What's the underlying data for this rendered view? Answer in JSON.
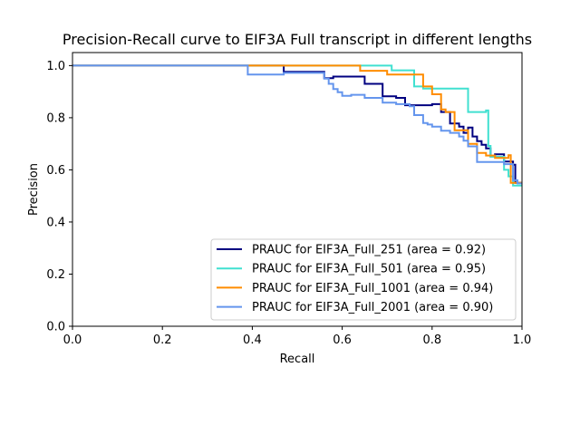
{
  "chart_data": {
    "type": "line",
    "title": "Precision-Recall curve to EIF3A Full transcript in different lengths",
    "xlabel": "Recall",
    "ylabel": "Precision",
    "xlim": [
      0.0,
      1.0
    ],
    "ylim": [
      0.0,
      1.05
    ],
    "xticks": [
      "0.0",
      "0.2",
      "0.4",
      "0.6",
      "0.8",
      "1.0"
    ],
    "yticks": [
      "0.0",
      "0.2",
      "0.4",
      "0.6",
      "0.8",
      "1.0"
    ],
    "grid": false,
    "legend_position": "lower-right",
    "series": [
      {
        "name": "PRAUC for EIF3A_Full_251 (area = 0.92)",
        "color": "#000080",
        "points": [
          [
            0.0,
            1.0
          ],
          [
            0.47,
            1.0
          ],
          [
            0.47,
            0.976
          ],
          [
            0.56,
            0.976
          ],
          [
            0.56,
            0.952
          ],
          [
            0.58,
            0.952
          ],
          [
            0.58,
            0.958
          ],
          [
            0.65,
            0.958
          ],
          [
            0.65,
            0.93
          ],
          [
            0.69,
            0.93
          ],
          [
            0.69,
            0.882
          ],
          [
            0.72,
            0.882
          ],
          [
            0.72,
            0.876
          ],
          [
            0.74,
            0.876
          ],
          [
            0.74,
            0.848
          ],
          [
            0.8,
            0.848
          ],
          [
            0.8,
            0.852
          ],
          [
            0.82,
            0.852
          ],
          [
            0.82,
            0.822
          ],
          [
            0.84,
            0.822
          ],
          [
            0.84,
            0.778
          ],
          [
            0.86,
            0.778
          ],
          [
            0.86,
            0.766
          ],
          [
            0.87,
            0.766
          ],
          [
            0.87,
            0.742
          ],
          [
            0.88,
            0.742
          ],
          [
            0.88,
            0.762
          ],
          [
            0.89,
            0.762
          ],
          [
            0.89,
            0.728
          ],
          [
            0.9,
            0.728
          ],
          [
            0.9,
            0.71
          ],
          [
            0.91,
            0.71
          ],
          [
            0.91,
            0.696
          ],
          [
            0.92,
            0.696
          ],
          [
            0.92,
            0.682
          ],
          [
            0.93,
            0.682
          ],
          [
            0.93,
            0.652
          ],
          [
            0.94,
            0.652
          ],
          [
            0.94,
            0.66
          ],
          [
            0.96,
            0.66
          ],
          [
            0.96,
            0.632
          ],
          [
            0.98,
            0.632
          ],
          [
            0.98,
            0.62
          ],
          [
            0.985,
            0.62
          ],
          [
            0.985,
            0.55
          ],
          [
            1.0,
            0.55
          ]
        ]
      },
      {
        "name": "PRAUC for EIF3A_Full_501 (area = 0.95)",
        "color": "#40e0d0",
        "points": [
          [
            0.0,
            1.0
          ],
          [
            0.71,
            1.0
          ],
          [
            0.71,
            0.982
          ],
          [
            0.76,
            0.982
          ],
          [
            0.76,
            0.92
          ],
          [
            0.78,
            0.92
          ],
          [
            0.78,
            0.912
          ],
          [
            0.88,
            0.912
          ],
          [
            0.88,
            0.822
          ],
          [
            0.92,
            0.822
          ],
          [
            0.92,
            0.828
          ],
          [
            0.925,
            0.828
          ],
          [
            0.925,
            0.692
          ],
          [
            0.93,
            0.692
          ],
          [
            0.93,
            0.65
          ],
          [
            0.96,
            0.65
          ],
          [
            0.96,
            0.6
          ],
          [
            0.97,
            0.6
          ],
          [
            0.97,
            0.575
          ],
          [
            0.98,
            0.575
          ],
          [
            0.98,
            0.54
          ],
          [
            1.0,
            0.54
          ]
        ]
      },
      {
        "name": "PRAUC for EIF3A_Full_1001 (area = 0.94)",
        "color": "#ff8c00",
        "points": [
          [
            0.0,
            1.0
          ],
          [
            0.64,
            1.0
          ],
          [
            0.64,
            0.98
          ],
          [
            0.7,
            0.98
          ],
          [
            0.7,
            0.966
          ],
          [
            0.78,
            0.966
          ],
          [
            0.78,
            0.92
          ],
          [
            0.8,
            0.92
          ],
          [
            0.8,
            0.89
          ],
          [
            0.82,
            0.89
          ],
          [
            0.82,
            0.832
          ],
          [
            0.83,
            0.832
          ],
          [
            0.83,
            0.822
          ],
          [
            0.85,
            0.822
          ],
          [
            0.85,
            0.752
          ],
          [
            0.88,
            0.752
          ],
          [
            0.88,
            0.7
          ],
          [
            0.9,
            0.7
          ],
          [
            0.9,
            0.665
          ],
          [
            0.92,
            0.665
          ],
          [
            0.92,
            0.655
          ],
          [
            0.94,
            0.655
          ],
          [
            0.94,
            0.646
          ],
          [
            0.97,
            0.646
          ],
          [
            0.97,
            0.656
          ],
          [
            0.975,
            0.656
          ],
          [
            0.975,
            0.55
          ],
          [
            1.0,
            0.55
          ]
        ]
      },
      {
        "name": "PRAUC for EIF3A_Full_2001 (area = 0.90)",
        "color": "#6495ed",
        "points": [
          [
            0.0,
            1.0
          ],
          [
            0.39,
            1.0
          ],
          [
            0.39,
            0.966
          ],
          [
            0.47,
            0.966
          ],
          [
            0.47,
            0.972
          ],
          [
            0.56,
            0.972
          ],
          [
            0.56,
            0.95
          ],
          [
            0.57,
            0.95
          ],
          [
            0.57,
            0.93
          ],
          [
            0.58,
            0.93
          ],
          [
            0.58,
            0.91
          ],
          [
            0.59,
            0.91
          ],
          [
            0.59,
            0.898
          ],
          [
            0.6,
            0.898
          ],
          [
            0.6,
            0.884
          ],
          [
            0.62,
            0.884
          ],
          [
            0.62,
            0.888
          ],
          [
            0.65,
            0.888
          ],
          [
            0.65,
            0.876
          ],
          [
            0.69,
            0.876
          ],
          [
            0.69,
            0.858
          ],
          [
            0.72,
            0.858
          ],
          [
            0.72,
            0.852
          ],
          [
            0.75,
            0.852
          ],
          [
            0.75,
            0.844
          ],
          [
            0.76,
            0.844
          ],
          [
            0.76,
            0.81
          ],
          [
            0.78,
            0.81
          ],
          [
            0.78,
            0.78
          ],
          [
            0.79,
            0.78
          ],
          [
            0.79,
            0.774
          ],
          [
            0.8,
            0.774
          ],
          [
            0.8,
            0.766
          ],
          [
            0.82,
            0.766
          ],
          [
            0.82,
            0.75
          ],
          [
            0.84,
            0.75
          ],
          [
            0.84,
            0.742
          ],
          [
            0.86,
            0.742
          ],
          [
            0.86,
            0.728
          ],
          [
            0.87,
            0.728
          ],
          [
            0.87,
            0.712
          ],
          [
            0.88,
            0.712
          ],
          [
            0.88,
            0.69
          ],
          [
            0.9,
            0.69
          ],
          [
            0.9,
            0.63
          ],
          [
            0.96,
            0.63
          ],
          [
            0.96,
            0.622
          ],
          [
            0.98,
            0.622
          ],
          [
            0.98,
            0.56
          ],
          [
            0.99,
            0.56
          ],
          [
            0.99,
            0.548
          ],
          [
            1.0,
            0.548
          ]
        ]
      }
    ]
  }
}
